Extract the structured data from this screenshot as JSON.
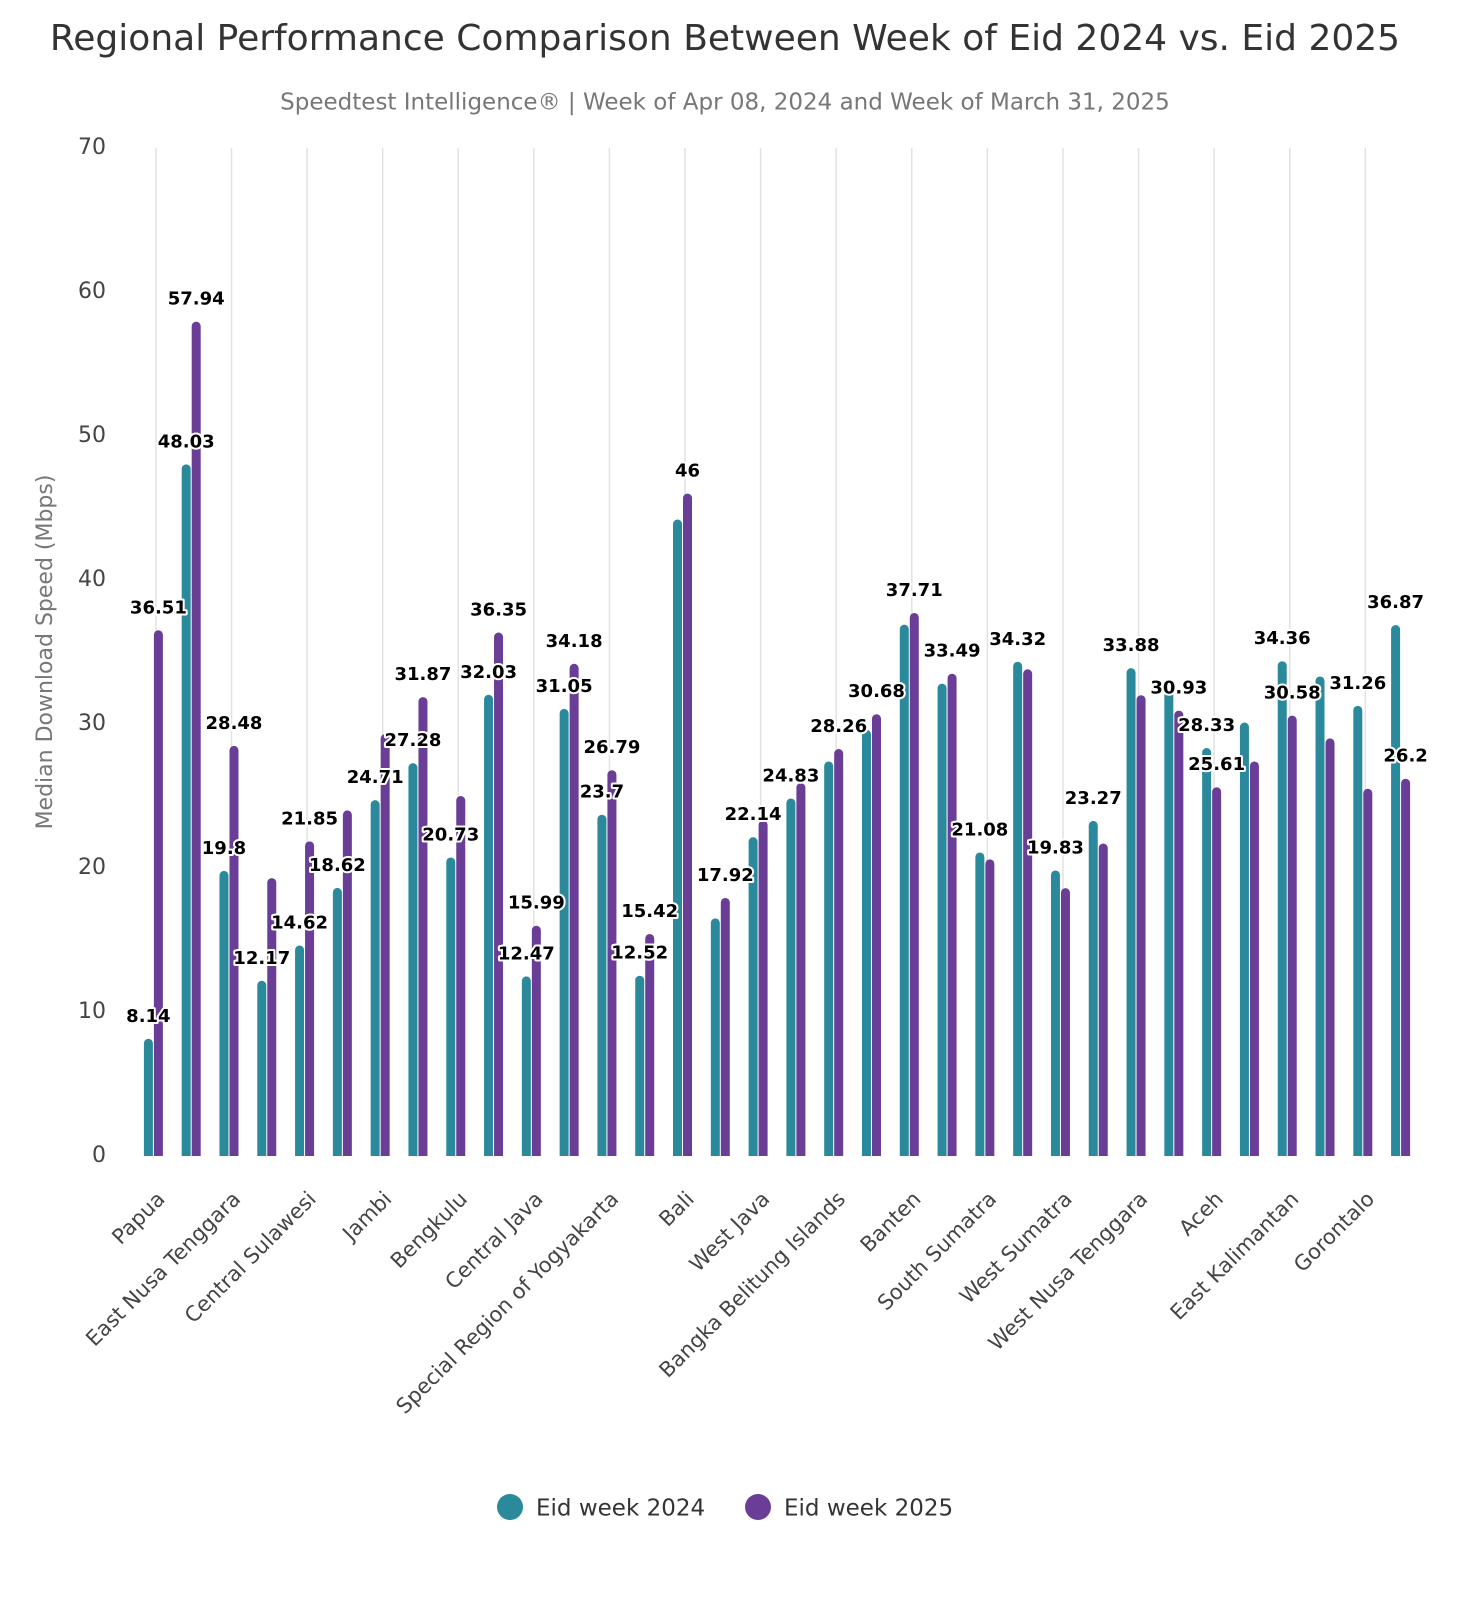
{
  "chart_data": {
    "type": "bar",
    "title": "Regional Performance Comparison Between Week of Eid 2024 vs. Eid 2025",
    "subtitle": "Speedtest Intelligence® | Week of Apr 08, 2024 and Week of March 31, 2025",
    "y_label": "Median Download Speed (Mbps)",
    "categories": [
      "Papua",
      null,
      "East Nusa Tenggara",
      null,
      "Central Sulawesi",
      null,
      "Jambi",
      null,
      "Bengkulu",
      null,
      "Central Java",
      null,
      "Special Region of Yogyakarta",
      null,
      "Bali",
      null,
      "West Java",
      null,
      "Bangka Belitung Islands",
      null,
      "Banten",
      null,
      "South Sumatra",
      null,
      "West Sumatra",
      null,
      "West Nusa Tenggara",
      null,
      "Aceh",
      null,
      "East Kalimantan",
      null,
      "Gorontalo",
      null
    ],
    "series": [
      {
        "name": "Eid week 2024",
        "color": "#2a8a9c",
        "values": [
          8.14,
          48.03,
          19.8,
          12.17,
          14.62,
          18.62,
          24.71,
          27.28,
          20.73,
          32.03,
          12.47,
          31.05,
          23.7,
          12.52,
          44.2,
          16.5,
          22.14,
          24.83,
          27.4,
          29.6,
          36.9,
          32.8,
          21.08,
          34.32,
          19.83,
          23.27,
          33.88,
          32.4,
          28.33,
          30.1,
          34.36,
          33.3,
          31.26,
          36.87
        ],
        "value_labels": [
          "8.14",
          "48.03",
          "19.8",
          "12.17",
          "14.62",
          "18.62",
          "24.71",
          "27.28",
          "20.73",
          "32.03",
          "12.47",
          "31.05",
          "23.7",
          "12.52",
          null,
          null,
          "22.14",
          "24.83",
          null,
          null,
          null,
          null,
          "21.08",
          "34.32",
          "19.83",
          "23.27",
          "33.88",
          null,
          "28.33",
          null,
          "34.36",
          null,
          "31.26",
          "36.87"
        ]
      },
      {
        "name": "Eid week 2025",
        "color": "#6a3d96",
        "values": [
          36.51,
          57.94,
          28.48,
          19.3,
          21.85,
          24.0,
          29.3,
          31.87,
          25.0,
          36.35,
          15.99,
          34.18,
          26.79,
          15.42,
          46,
          17.92,
          23.3,
          25.9,
          28.26,
          30.68,
          37.71,
          33.49,
          20.6,
          33.8,
          18.6,
          21.7,
          32.0,
          30.93,
          25.61,
          27.4,
          30.58,
          29.0,
          25.5,
          26.2
        ],
        "value_labels": [
          "36.51",
          "57.94",
          "28.48",
          null,
          "21.85",
          null,
          null,
          "31.87",
          null,
          "36.35",
          "15.99",
          "34.18",
          "26.79",
          "15.42",
          "46",
          "17.92",
          null,
          null,
          "28.26",
          "30.68",
          "37.71",
          "33.49",
          null,
          null,
          null,
          null,
          null,
          "30.93",
          "25.61",
          null,
          "30.58",
          null,
          null,
          "26.2"
        ]
      }
    ],
    "ylim": [
      0,
      70
    ],
    "yticks": [
      0,
      10,
      20,
      30,
      40,
      50,
      60,
      70
    ],
    "grid": "x",
    "legend": "bottom"
  }
}
